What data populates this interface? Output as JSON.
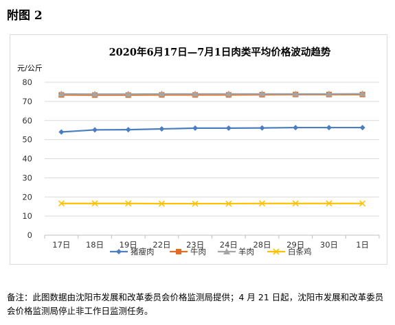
{
  "page": {
    "heading": "附图 2",
    "footnote": "备注：此图数据由沈阳市发展和改革委员会价格监测局提供；4 月 21 日起，沈阳市发展和改革委员会价格监测局停止非工作日监测任务。"
  },
  "chart_data": {
    "type": "line",
    "title": "2020年6月17日—7月1日肉类平均价格波动趋势",
    "ylabel": "元/公斤",
    "xlabel": "",
    "ylim": [
      0,
      80
    ],
    "yticks": [
      0,
      10,
      20,
      30,
      40,
      50,
      60,
      70,
      80
    ],
    "grid": true,
    "legend_position": "bottom",
    "categories": [
      "17日",
      "18日",
      "19日",
      "22日",
      "23日",
      "24日",
      "28日",
      "29日",
      "30日",
      "1日"
    ],
    "series": [
      {
        "name": "猪瘦肉",
        "color": "#4a7ebf",
        "marker": "diamond",
        "values": [
          54.0,
          55.1,
          55.2,
          55.6,
          56.0,
          56.0,
          56.1,
          56.3,
          56.3,
          56.3
        ]
      },
      {
        "name": "牛肉",
        "color": "#e46c22",
        "marker": "square",
        "values": [
          73.4,
          73.3,
          73.3,
          73.4,
          73.4,
          73.4,
          73.5,
          73.6,
          73.6,
          73.6
        ]
      },
      {
        "name": "羊肉",
        "color": "#a5a5a5",
        "marker": "triangle",
        "values": [
          73.9,
          73.8,
          73.8,
          73.9,
          73.9,
          73.9,
          73.9,
          73.9,
          73.9,
          74.0
        ]
      },
      {
        "name": "白条鸡",
        "color": "#ffc000",
        "marker": "x",
        "values": [
          16.6,
          16.6,
          16.6,
          16.5,
          16.5,
          16.5,
          16.6,
          16.6,
          16.6,
          16.6
        ]
      }
    ]
  }
}
